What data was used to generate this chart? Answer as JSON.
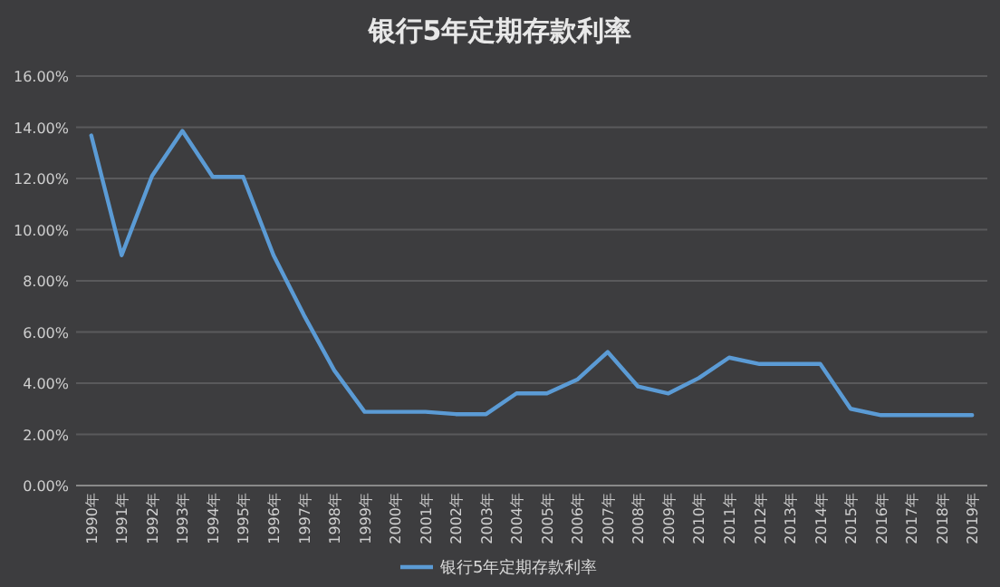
{
  "chart_data": {
    "type": "line",
    "title": "银行5年定期存款利率",
    "categories": [
      "1990年",
      "1991年",
      "1992年",
      "1993年",
      "1994年",
      "1995年",
      "1996年",
      "1997年",
      "1998年",
      "1999年",
      "2000年",
      "2001年",
      "2002年",
      "2003年",
      "2004年",
      "2005年",
      "2006年",
      "2007年",
      "2008年",
      "2009年",
      "2010年",
      "2011年",
      "2012年",
      "2013年",
      "2014年",
      "2015年",
      "2016年",
      "2017年",
      "2018年",
      "2019年"
    ],
    "series": [
      {
        "name": "银行5年定期存款利率",
        "color": "#5b9bd5",
        "values": [
          13.68,
          9.0,
          12.1,
          13.86,
          12.06,
          12.06,
          9.0,
          6.66,
          4.5,
          2.88,
          2.88,
          2.88,
          2.79,
          2.79,
          3.6,
          3.6,
          4.14,
          5.22,
          3.87,
          3.6,
          4.2,
          5.0,
          4.75,
          4.75,
          4.75,
          3.0,
          2.75,
          2.75,
          2.75,
          2.75
        ]
      }
    ],
    "ylim": [
      0,
      16
    ],
    "yticks": [
      {
        "value": 0,
        "label": "0.00%"
      },
      {
        "value": 2,
        "label": "2.00%"
      },
      {
        "value": 4,
        "label": "4.00%"
      },
      {
        "value": 6,
        "label": "6.00%"
      },
      {
        "value": 8,
        "label": "8.00%"
      },
      {
        "value": 10,
        "label": "10.00%"
      },
      {
        "value": 12,
        "label": "12.00%"
      },
      {
        "value": 14,
        "label": "14.00%"
      },
      {
        "value": 16,
        "label": "16.00%"
      }
    ],
    "grid": "y",
    "legend": "bottom",
    "marker": "none",
    "line_style": "solid"
  }
}
